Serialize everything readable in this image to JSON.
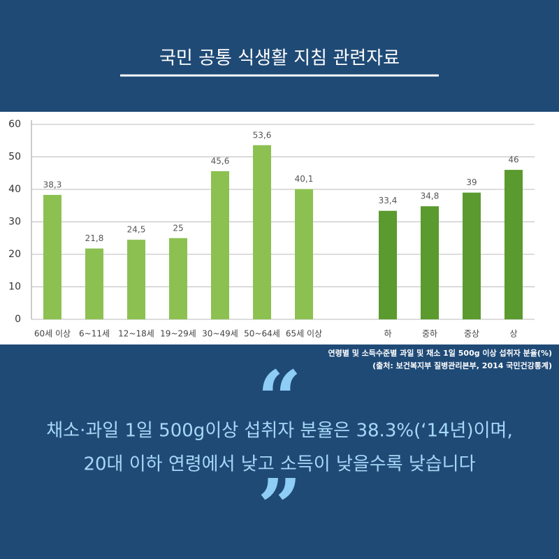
{
  "header": {
    "title": "국민 공통 식생활 지침 관련자료"
  },
  "chart_data": {
    "type": "bar",
    "categories": [
      "60세 이상",
      "6~11세",
      "12~18세",
      "19~29세",
      "30~49세",
      "50~64세",
      "65세 이상",
      null,
      "하",
      "중하",
      "중상",
      "상"
    ],
    "values": [
      38.3,
      21.8,
      24.5,
      25,
      45.6,
      53.6,
      40.1,
      null,
      33.4,
      34.8,
      39,
      46
    ],
    "value_labels": [
      "38,3",
      "21,8",
      "24,5",
      "25",
      "45,6",
      "53,6",
      "40,1",
      null,
      "33,4",
      "34,8",
      "39",
      "46"
    ],
    "colors": [
      "#8cc152",
      "#8cc152",
      "#8cc152",
      "#8cc152",
      "#8cc152",
      "#8cc152",
      "#8cc152",
      null,
      "#5a9a2e",
      "#5a9a2e",
      "#5a9a2e",
      "#5a9a2e"
    ],
    "ylim": [
      0,
      60
    ],
    "yticks": [
      0,
      10,
      20,
      30,
      40,
      50,
      60
    ],
    "grid": true
  },
  "caption": [
    "연령별 및 소득수준별 과일 및 채소 1일 500g 이상 섭취자 분율(%)",
    "(출처: 보건복지부 질병관리본부, 2014 국민건강통계)"
  ],
  "quote": {
    "open": "“",
    "lines": [
      "채소·과일 1일 500g이상 섭취자 분율은 38.3%(‘14년)이며,",
      "20대 이하 연령에서 낮고 소득이 낮을수록 낮습니다"
    ],
    "close": "”"
  }
}
